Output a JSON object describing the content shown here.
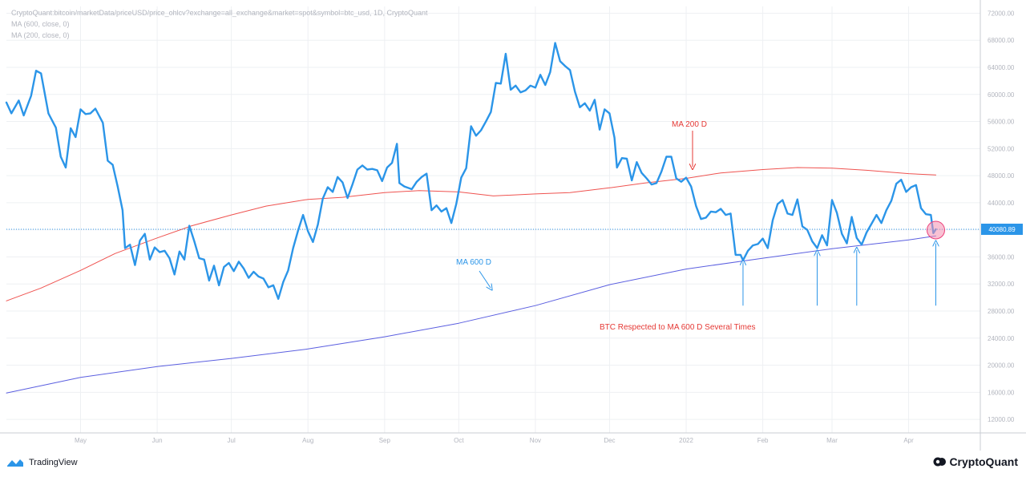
{
  "legend": {
    "symbol_line": "CryptoQuant:bitcoin/marketData/priceUSD/price_ohlcv?exchange=all_exchange&market=spot&symbol=btc_usd, 1D, CryptoQuant",
    "ma600_line": "MA (600, close, 0)",
    "ma200_line": "MA (200, close, 0)"
  },
  "branding": {
    "tradingview": "TradingView",
    "cryptoquant": "CryptoQuant"
  },
  "colors": {
    "price": "#2b95e8",
    "ma200": "#ef5350",
    "ma600": "#5b5fe0",
    "annotation_blue": "#2b95e8",
    "annotation_red": "#e53935",
    "current_price_label_bg": "#2b95e8",
    "highlight_circle": "#f48fb1"
  },
  "chart_data": {
    "type": "line",
    "x_unit": "date (2021-04-01 to 2022-04-30)",
    "xlim": [
      "2021-04-01",
      "2022-04-30"
    ],
    "ylim": [
      10000,
      73000
    ],
    "y_ticks": [
      "12000.00",
      "16000.00",
      "20000.00",
      "24000.00",
      "28000.00",
      "32000.00",
      "36000.00",
      "40000.00",
      "44000.00",
      "48000.00",
      "52000.00",
      "56000.00",
      "60000.00",
      "64000.00",
      "68000.00",
      "72000.00"
    ],
    "x_ticks": [
      {
        "date": "2021-05-01",
        "label": "May"
      },
      {
        "date": "2021-06-01",
        "label": "Jun"
      },
      {
        "date": "2021-07-01",
        "label": "Jul"
      },
      {
        "date": "2021-08-01",
        "label": "Aug"
      },
      {
        "date": "2021-09-01",
        "label": "Sep"
      },
      {
        "date": "2021-10-01",
        "label": "Oct"
      },
      {
        "date": "2021-11-01",
        "label": "Nov"
      },
      {
        "date": "2021-12-01",
        "label": "Dec"
      },
      {
        "date": "2022-01-01",
        "label": "2022"
      },
      {
        "date": "2022-02-01",
        "label": "Feb"
      },
      {
        "date": "2022-03-01",
        "label": "Mar"
      },
      {
        "date": "2022-04-01",
        "label": "Apr"
      }
    ],
    "grid": true,
    "current_price": 40080.89,
    "current_price_label": "40080.89",
    "series": [
      {
        "key": "price",
        "points": [
          [
            "2021-04-01",
            58800
          ],
          [
            "2021-04-03",
            57200
          ],
          [
            "2021-04-06",
            59100
          ],
          [
            "2021-04-08",
            56900
          ],
          [
            "2021-04-11",
            59800
          ],
          [
            "2021-04-13",
            63500
          ],
          [
            "2021-04-15",
            63100
          ],
          [
            "2021-04-18",
            57200
          ],
          [
            "2021-04-21",
            55100
          ],
          [
            "2021-04-23",
            50800
          ],
          [
            "2021-04-25",
            49200
          ],
          [
            "2021-04-27",
            55000
          ],
          [
            "2021-04-29",
            53700
          ],
          [
            "2021-05-01",
            57800
          ],
          [
            "2021-05-03",
            57100
          ],
          [
            "2021-05-05",
            57200
          ],
          [
            "2021-05-07",
            57900
          ],
          [
            "2021-05-10",
            55800
          ],
          [
            "2021-05-12",
            50200
          ],
          [
            "2021-05-14",
            49600
          ],
          [
            "2021-05-16",
            46400
          ],
          [
            "2021-05-18",
            42900
          ],
          [
            "2021-05-19",
            37300
          ],
          [
            "2021-05-21",
            37800
          ],
          [
            "2021-05-23",
            34800
          ],
          [
            "2021-05-25",
            38400
          ],
          [
            "2021-05-27",
            39400
          ],
          [
            "2021-05-29",
            35600
          ],
          [
            "2021-05-31",
            37400
          ],
          [
            "2021-06-02",
            36700
          ],
          [
            "2021-06-04",
            36900
          ],
          [
            "2021-06-06",
            35800
          ],
          [
            "2021-06-08",
            33400
          ],
          [
            "2021-06-10",
            36800
          ],
          [
            "2021-06-12",
            35600
          ],
          [
            "2021-06-14",
            40600
          ],
          [
            "2021-06-16",
            38300
          ],
          [
            "2021-06-18",
            35800
          ],
          [
            "2021-06-20",
            35600
          ],
          [
            "2021-06-22",
            32500
          ],
          [
            "2021-06-24",
            34700
          ],
          [
            "2021-06-26",
            31800
          ],
          [
            "2021-06-28",
            34500
          ],
          [
            "2021-06-30",
            35100
          ],
          [
            "2021-07-02",
            33900
          ],
          [
            "2021-07-04",
            35300
          ],
          [
            "2021-07-06",
            34300
          ],
          [
            "2021-07-08",
            32900
          ],
          [
            "2021-07-10",
            33800
          ],
          [
            "2021-07-12",
            33100
          ],
          [
            "2021-07-14",
            32800
          ],
          [
            "2021-07-16",
            31500
          ],
          [
            "2021-07-18",
            31800
          ],
          [
            "2021-07-20",
            29800
          ],
          [
            "2021-07-22",
            32300
          ],
          [
            "2021-07-24",
            34000
          ],
          [
            "2021-07-26",
            37300
          ],
          [
            "2021-07-28",
            39900
          ],
          [
            "2021-07-30",
            42200
          ],
          [
            "2021-08-01",
            39800
          ],
          [
            "2021-08-03",
            38200
          ],
          [
            "2021-08-05",
            40800
          ],
          [
            "2021-08-07",
            44600
          ],
          [
            "2021-08-09",
            46300
          ],
          [
            "2021-08-11",
            45600
          ],
          [
            "2021-08-13",
            47800
          ],
          [
            "2021-08-15",
            47000
          ],
          [
            "2021-08-17",
            44700
          ],
          [
            "2021-08-19",
            46700
          ],
          [
            "2021-08-21",
            48900
          ],
          [
            "2021-08-23",
            49500
          ],
          [
            "2021-08-25",
            48900
          ],
          [
            "2021-08-27",
            49000
          ],
          [
            "2021-08-29",
            48800
          ],
          [
            "2021-08-31",
            47200
          ],
          [
            "2021-09-02",
            49200
          ],
          [
            "2021-09-04",
            49900
          ],
          [
            "2021-09-06",
            52700
          ],
          [
            "2021-09-07",
            46900
          ],
          [
            "2021-09-09",
            46400
          ],
          [
            "2021-09-12",
            46000
          ],
          [
            "2021-09-14",
            47100
          ],
          [
            "2021-09-16",
            47800
          ],
          [
            "2021-09-18",
            48300
          ],
          [
            "2021-09-20",
            42900
          ],
          [
            "2021-09-22",
            43600
          ],
          [
            "2021-09-24",
            42700
          ],
          [
            "2021-09-26",
            43200
          ],
          [
            "2021-09-28",
            41000
          ],
          [
            "2021-09-30",
            43800
          ],
          [
            "2021-10-02",
            47700
          ],
          [
            "2021-10-04",
            49100
          ],
          [
            "2021-10-06",
            55300
          ],
          [
            "2021-10-08",
            53900
          ],
          [
            "2021-10-10",
            54700
          ],
          [
            "2021-10-12",
            56000
          ],
          [
            "2021-10-14",
            57400
          ],
          [
            "2021-10-16",
            61700
          ],
          [
            "2021-10-18",
            61600
          ],
          [
            "2021-10-20",
            66000
          ],
          [
            "2021-10-22",
            60700
          ],
          [
            "2021-10-24",
            61300
          ],
          [
            "2021-10-26",
            60300
          ],
          [
            "2021-10-28",
            60600
          ],
          [
            "2021-10-30",
            61300
          ],
          [
            "2021-11-01",
            61000
          ],
          [
            "2021-11-03",
            62900
          ],
          [
            "2021-11-05",
            61400
          ],
          [
            "2021-11-07",
            63300
          ],
          [
            "2021-11-09",
            67600
          ],
          [
            "2021-11-11",
            64900
          ],
          [
            "2021-11-13",
            64200
          ],
          [
            "2021-11-15",
            63600
          ],
          [
            "2021-11-17",
            60400
          ],
          [
            "2021-11-19",
            58100
          ],
          [
            "2021-11-21",
            58700
          ],
          [
            "2021-11-23",
            57600
          ],
          [
            "2021-11-25",
            59200
          ],
          [
            "2021-11-27",
            54800
          ],
          [
            "2021-11-29",
            57800
          ],
          [
            "2021-12-01",
            57200
          ],
          [
            "2021-12-03",
            53600
          ],
          [
            "2021-12-04",
            49200
          ],
          [
            "2021-12-06",
            50600
          ],
          [
            "2021-12-08",
            50500
          ],
          [
            "2021-12-10",
            47300
          ],
          [
            "2021-12-12",
            50000
          ],
          [
            "2021-12-14",
            48400
          ],
          [
            "2021-12-16",
            47600
          ],
          [
            "2021-12-18",
            46700
          ],
          [
            "2021-12-20",
            46900
          ],
          [
            "2021-12-22",
            48600
          ],
          [
            "2021-12-24",
            50800
          ],
          [
            "2021-12-26",
            50800
          ],
          [
            "2021-12-28",
            47600
          ],
          [
            "2021-12-30",
            47100
          ],
          [
            "2022-01-01",
            47700
          ],
          [
            "2022-01-03",
            46400
          ],
          [
            "2022-01-05",
            43500
          ],
          [
            "2022-01-07",
            41600
          ],
          [
            "2022-01-09",
            41800
          ],
          [
            "2022-01-11",
            42700
          ],
          [
            "2022-01-13",
            42600
          ],
          [
            "2022-01-15",
            43100
          ],
          [
            "2022-01-17",
            42200
          ],
          [
            "2022-01-19",
            42400
          ],
          [
            "2022-01-21",
            36300
          ],
          [
            "2022-01-23",
            36300
          ],
          [
            "2022-01-24",
            35500
          ],
          [
            "2022-01-26",
            36900
          ],
          [
            "2022-01-28",
            37700
          ],
          [
            "2022-01-30",
            37900
          ],
          [
            "2022-02-01",
            38700
          ],
          [
            "2022-02-03",
            37300
          ],
          [
            "2022-02-05",
            41400
          ],
          [
            "2022-02-07",
            43800
          ],
          [
            "2022-02-09",
            44400
          ],
          [
            "2022-02-11",
            42400
          ],
          [
            "2022-02-13",
            42200
          ],
          [
            "2022-02-15",
            44500
          ],
          [
            "2022-02-17",
            40500
          ],
          [
            "2022-02-19",
            40000
          ],
          [
            "2022-02-21",
            38300
          ],
          [
            "2022-02-23",
            37300
          ],
          [
            "2022-02-25",
            39200
          ],
          [
            "2022-02-27",
            37700
          ],
          [
            "2022-03-01",
            44400
          ],
          [
            "2022-03-03",
            42500
          ],
          [
            "2022-03-05",
            39400
          ],
          [
            "2022-03-07",
            38000
          ],
          [
            "2022-03-09",
            41900
          ],
          [
            "2022-03-11",
            38800
          ],
          [
            "2022-03-13",
            37800
          ],
          [
            "2022-03-15",
            39600
          ],
          [
            "2022-03-17",
            40900
          ],
          [
            "2022-03-19",
            42200
          ],
          [
            "2022-03-21",
            41000
          ],
          [
            "2022-03-23",
            42900
          ],
          [
            "2022-03-25",
            44300
          ],
          [
            "2022-03-27",
            46800
          ],
          [
            "2022-03-29",
            47400
          ],
          [
            "2022-03-31",
            45600
          ],
          [
            "2022-04-02",
            46300
          ],
          [
            "2022-04-04",
            46600
          ],
          [
            "2022-04-06",
            43200
          ],
          [
            "2022-04-08",
            42300
          ],
          [
            "2022-04-10",
            42200
          ],
          [
            "2022-04-11",
            39500
          ],
          [
            "2022-04-12",
            40080
          ]
        ]
      },
      {
        "key": "ma200",
        "points": [
          [
            "2021-04-01",
            29500
          ],
          [
            "2021-04-15",
            31400
          ],
          [
            "2021-05-01",
            34000
          ],
          [
            "2021-05-15",
            36500
          ],
          [
            "2021-06-01",
            38800
          ],
          [
            "2021-06-15",
            40600
          ],
          [
            "2021-07-01",
            42200
          ],
          [
            "2021-07-15",
            43500
          ],
          [
            "2021-08-01",
            44500
          ],
          [
            "2021-08-15",
            44800
          ],
          [
            "2021-09-01",
            45500
          ],
          [
            "2021-09-15",
            45800
          ],
          [
            "2021-10-01",
            45600
          ],
          [
            "2021-10-15",
            45000
          ],
          [
            "2021-11-01",
            45300
          ],
          [
            "2021-11-15",
            45500
          ],
          [
            "2021-12-01",
            46200
          ],
          [
            "2021-12-15",
            46900
          ],
          [
            "2022-01-01",
            47600
          ],
          [
            "2022-01-15",
            48400
          ],
          [
            "2022-02-01",
            48900
          ],
          [
            "2022-02-15",
            49200
          ],
          [
            "2022-03-01",
            49100
          ],
          [
            "2022-03-15",
            48800
          ],
          [
            "2022-04-01",
            48300
          ],
          [
            "2022-04-12",
            48100
          ]
        ]
      },
      {
        "key": "ma600",
        "points": [
          [
            "2021-04-01",
            15900
          ],
          [
            "2021-05-01",
            18200
          ],
          [
            "2021-06-01",
            19800
          ],
          [
            "2021-07-01",
            21000
          ],
          [
            "2021-08-01",
            22400
          ],
          [
            "2021-09-01",
            24200
          ],
          [
            "2021-10-01",
            26200
          ],
          [
            "2021-11-01",
            28800
          ],
          [
            "2021-12-01",
            31900
          ],
          [
            "2022-01-01",
            34200
          ],
          [
            "2022-02-01",
            35800
          ],
          [
            "2022-03-01",
            37200
          ],
          [
            "2022-04-01",
            38500
          ],
          [
            "2022-04-12",
            39100
          ]
        ]
      }
    ],
    "annotations": {
      "ma200_label": "MA 200 D",
      "ma600_label": "MA 600 D",
      "respected_label": "BTC Respected to MA 600 D Several Times",
      "touch_dates": [
        "2022-01-24",
        "2022-02-23",
        "2022-03-11",
        "2022-04-12"
      ],
      "touch_arrow_tip_values": [
        35200,
        36600,
        37000,
        38000
      ],
      "touch_arrow_base_value": 28800
    }
  }
}
